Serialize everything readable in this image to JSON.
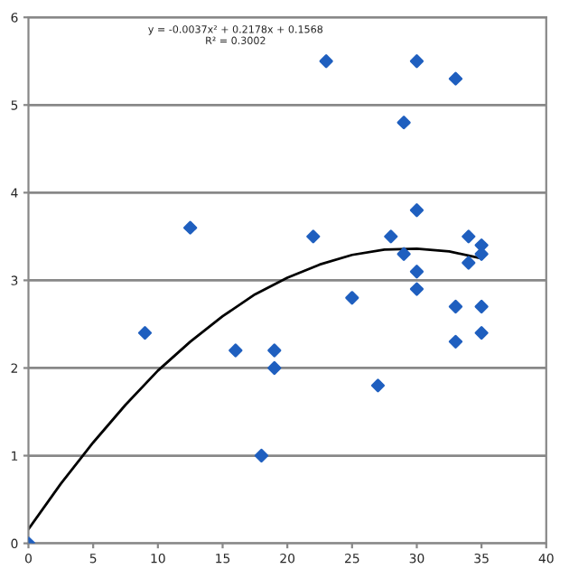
{
  "chart_data": {
    "type": "scatter",
    "series": [
      {
        "color": "#1f5fbf",
        "marker": "diamond",
        "x": [
          0,
          9,
          12.5,
          16,
          18,
          19,
          19,
          22,
          23,
          25,
          27,
          28,
          29,
          29,
          30,
          30,
          30,
          30,
          33,
          33,
          33,
          34,
          34,
          35,
          35,
          35,
          35
        ],
        "values": [
          0,
          2.4,
          3.6,
          2.2,
          1.0,
          2.2,
          2.0,
          3.5,
          5.5,
          2.8,
          1.8,
          3.5,
          4.8,
          3.3,
          5.5,
          3.8,
          3.1,
          2.9,
          5.3,
          2.7,
          2.3,
          3.5,
          3.2,
          3.4,
          3.3,
          2.7,
          2.4
        ]
      },
      {
        "type": "line",
        "color": "#000000",
        "x": [
          0,
          2.5,
          5,
          7.5,
          10,
          12.5,
          15,
          17.5,
          20,
          22.5,
          25,
          27.5,
          30,
          32.5,
          35
        ],
        "values": [
          0.16,
          0.68,
          1.15,
          1.58,
          1.97,
          2.3,
          2.59,
          2.84,
          3.03,
          3.18,
          3.29,
          3.35,
          3.36,
          3.33,
          3.25
        ]
      }
    ],
    "annotations": [
      "y = -0.0037x² + 0.2178x + 0.1568\nR² = 0.3002"
    ],
    "xlim": [
      0,
      40
    ],
    "xticks": [
      0,
      5,
      10,
      15,
      20,
      25,
      30,
      35,
      40
    ],
    "ylim": [
      0,
      6
    ],
    "yticks": [
      0,
      1,
      2,
      3,
      4,
      5,
      6
    ],
    "grid": "y"
  }
}
